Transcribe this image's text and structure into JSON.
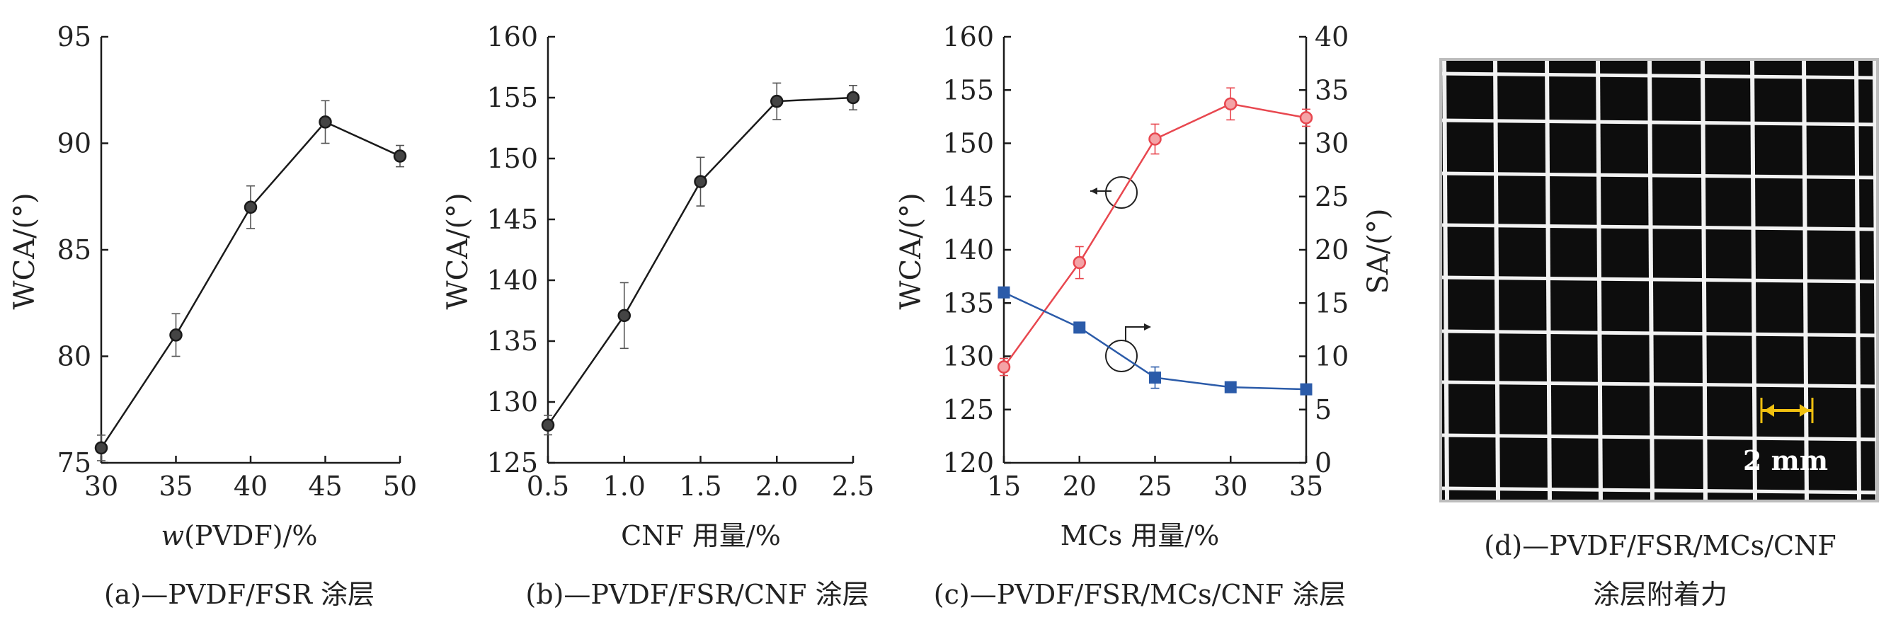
{
  "chart_data": [
    {
      "type": "line",
      "panel": "a",
      "xlabel_prefix": "w",
      "xlabel": "(PVDF)/%",
      "ylabel": "WCA/(°)",
      "caption": "(a)—PVDF/FSR 涂层",
      "xlim": [
        30,
        50
      ],
      "ylim": [
        75,
        95
      ],
      "xticks": [
        "30",
        "35",
        "40",
        "45",
        "50"
      ],
      "yticks": [
        "75",
        "80",
        "85",
        "90",
        "95"
      ],
      "series": [
        {
          "color": "#1a1a1a",
          "marker": "circle",
          "x": [
            30,
            35,
            40,
            45,
            50
          ],
          "y": [
            75.7,
            81.0,
            87.0,
            91.0,
            89.4
          ],
          "err": [
            0.6,
            1.0,
            1.0,
            1.0,
            0.5
          ]
        }
      ]
    },
    {
      "type": "line",
      "panel": "b",
      "xlabel": "CNF 用量/%",
      "ylabel": "WCA/(°)",
      "caption": "(b)—PVDF/FSR/CNF 涂层",
      "xlim": [
        0.5,
        2.5
      ],
      "ylim": [
        125,
        160
      ],
      "xticks": [
        "0.5",
        "1.0",
        "1.5",
        "2.0",
        "2.5"
      ],
      "yticks": [
        "125",
        "130",
        "135",
        "140",
        "145",
        "150",
        "155",
        "160"
      ],
      "series": [
        {
          "color": "#1a1a1a",
          "marker": "circle",
          "x": [
            0.5,
            1.0,
            1.5,
            2.0,
            2.5
          ],
          "y": [
            128.1,
            137.1,
            148.1,
            154.7,
            155.0
          ],
          "err": [
            0.8,
            2.7,
            2.0,
            1.5,
            1.0
          ]
        }
      ]
    },
    {
      "type": "line",
      "panel": "c",
      "xlabel": "MCs 用量/%",
      "ylabel": "WCA/(°)",
      "y2label": "SA/(°)",
      "caption": "(c)—PVDF/FSR/MCs/CNF 涂层",
      "xlim": [
        15,
        35
      ],
      "ylim": [
        120,
        160
      ],
      "y2lim": [
        0,
        40
      ],
      "xticks": [
        "15",
        "20",
        "25",
        "30",
        "35"
      ],
      "yticks": [
        "120",
        "125",
        "130",
        "135",
        "140",
        "145",
        "150",
        "155",
        "160"
      ],
      "y2ticks": [
        "0",
        "5",
        "10",
        "15",
        "20",
        "25",
        "30",
        "35",
        "40"
      ],
      "series": [
        {
          "axis": "left",
          "color": "#e8474f",
          "marker": "circle",
          "x": [
            15,
            20,
            25,
            30,
            35
          ],
          "y": [
            129.0,
            138.8,
            150.4,
            153.7,
            152.4
          ],
          "err": [
            0.8,
            1.5,
            1.4,
            1.5,
            0.8
          ]
        },
        {
          "axis": "right",
          "color": "#2b5ba9",
          "marker": "square",
          "x": [
            15,
            20,
            25,
            30,
            35
          ],
          "y": [
            16.0,
            12.7,
            8.0,
            7.1,
            6.9
          ],
          "err": [
            0.3,
            0.5,
            1.0,
            0.3,
            0.3
          ]
        }
      ]
    }
  ],
  "photo": {
    "caption_line1": "(d)—PVDF/FSR/MCs/CNF",
    "caption_line2": "涂层附着力",
    "scale_label": "2 mm",
    "scale_color": "#f0c010"
  }
}
